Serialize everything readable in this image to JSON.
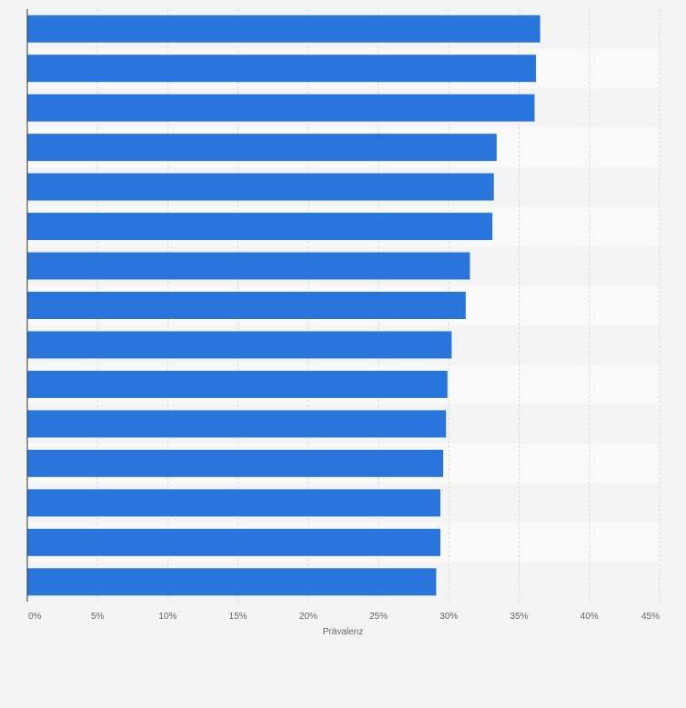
{
  "chart_data": {
    "type": "bar",
    "orientation": "horizontal",
    "title": "",
    "ylabel": "",
    "xlabel": "Prävalenz",
    "xlim": [
      0,
      45
    ],
    "x_ticks": [
      "0%",
      "5%",
      "10%",
      "15%",
      "20%",
      "25%",
      "30%",
      "35%",
      "40%",
      "45%"
    ],
    "grid": "vertical",
    "categories": [
      "",
      "",
      "",
      "",
      "",
      "",
      "",
      "",
      "",
      "",
      "",
      "",
      "",
      "",
      ""
    ],
    "values": [
      36.5,
      36.2,
      36.1,
      33.4,
      33.2,
      33.1,
      31.5,
      31.2,
      30.2,
      29.9,
      29.8,
      29.6,
      29.4,
      29.4,
      29.1
    ],
    "unit": "%",
    "colors": {
      "bar": "#2876dd",
      "band_odd": "#f4f4f4",
      "band_even": "#f9f9f9",
      "grid": "#dcdcdc",
      "axis": "#333333",
      "tick_text": "#666666"
    }
  }
}
